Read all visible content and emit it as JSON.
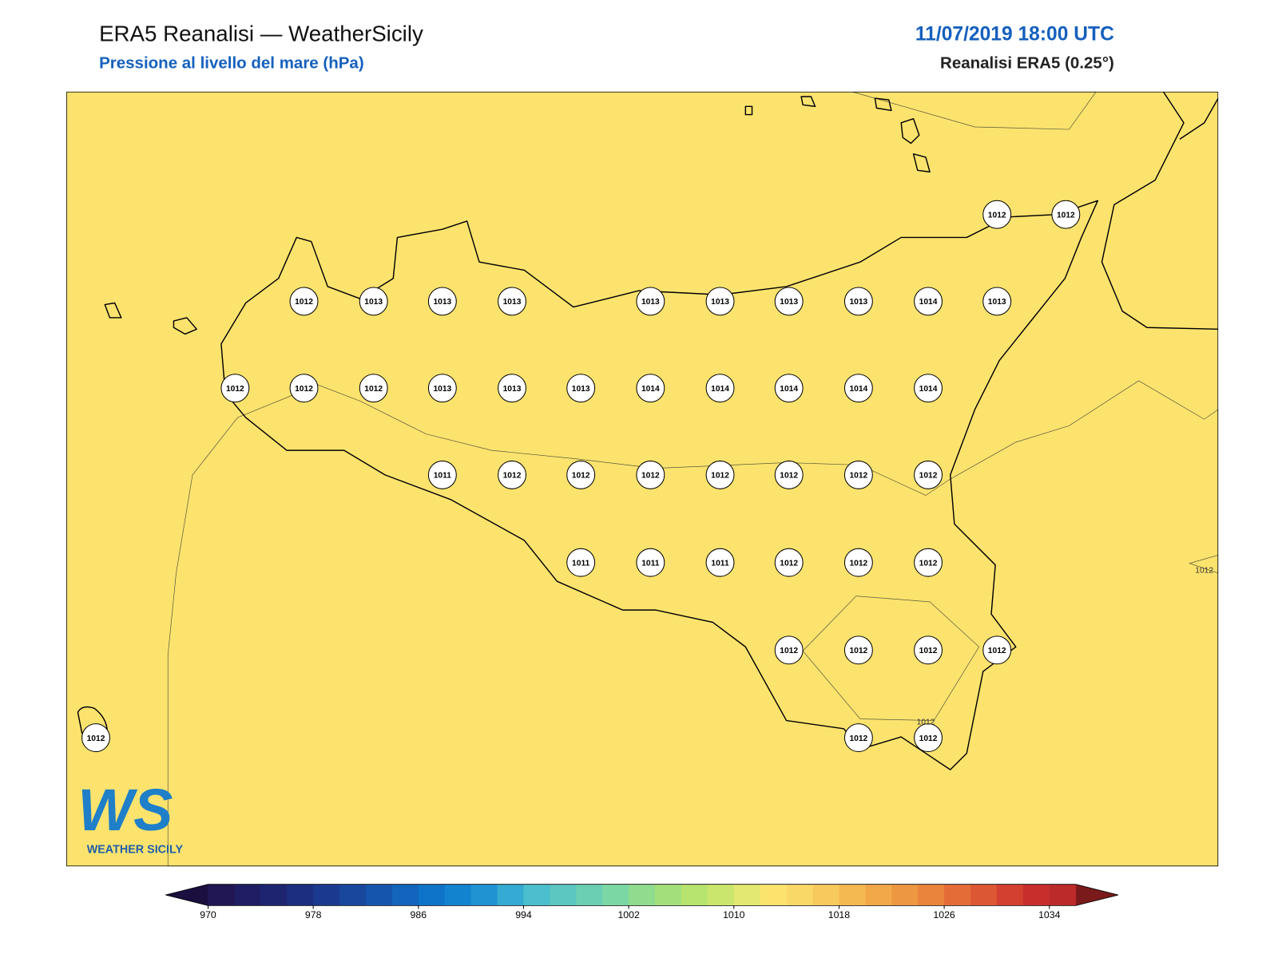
{
  "header": {
    "title": "ERA5 Reanalisi — WeatherSicily",
    "subtitle": "Pressione al livello del mare (hPa)",
    "date": "11/07/2019 18:00 UTC",
    "source": "Reanalisi ERA5 (0.25°)"
  },
  "stations": [
    1012,
    1012,
    1012,
    1013,
    1013,
    1013,
    1013,
    1013,
    1013,
    1013,
    1014,
    1013,
    1012,
    1012,
    1012,
    1013,
    1013,
    1013,
    1014,
    1014,
    1014,
    1014,
    1014,
    1011,
    1012,
    1012,
    1012,
    1012,
    1012,
    1012,
    1012,
    1011,
    1011,
    1011,
    1012,
    1012,
    1012,
    1012,
    1012,
    1012,
    1012,
    1012,
    1012,
    1012
  ],
  "contour_labels": [
    1012,
    1012
  ],
  "logo": {
    "mark": "WS",
    "text": "WEATHER SICILY"
  },
  "colorbar": {
    "bounds": [
      970,
      1036
    ],
    "ticks": [
      970,
      978,
      986,
      994,
      1002,
      1010,
      1018,
      1026,
      1034
    ],
    "colors": [
      "#211754",
      "#1f1d63",
      "#1e2470",
      "#1c2e80",
      "#1b3a8f",
      "#18479d",
      "#1555ad",
      "#1264bc",
      "#0e74c9",
      "#1283cf",
      "#2094d3",
      "#35aad2",
      "#4bbfce",
      "#5cc6c0",
      "#6bcfb3",
      "#7bd7a4",
      "#8fdc8e",
      "#a3e07a",
      "#b7e36f",
      "#cbe66d",
      "#e3e870",
      "#fce36e",
      "#fad868",
      "#f8c95d",
      "#f5b952",
      "#f2a849",
      "#ee9742",
      "#ea843c",
      "#e46d37",
      "#dc5733",
      "#d3402f",
      "#c72f2c",
      "#bc2a2a"
    ],
    "under": "#1a0f3f",
    "over": "#7a1a1a"
  }
}
